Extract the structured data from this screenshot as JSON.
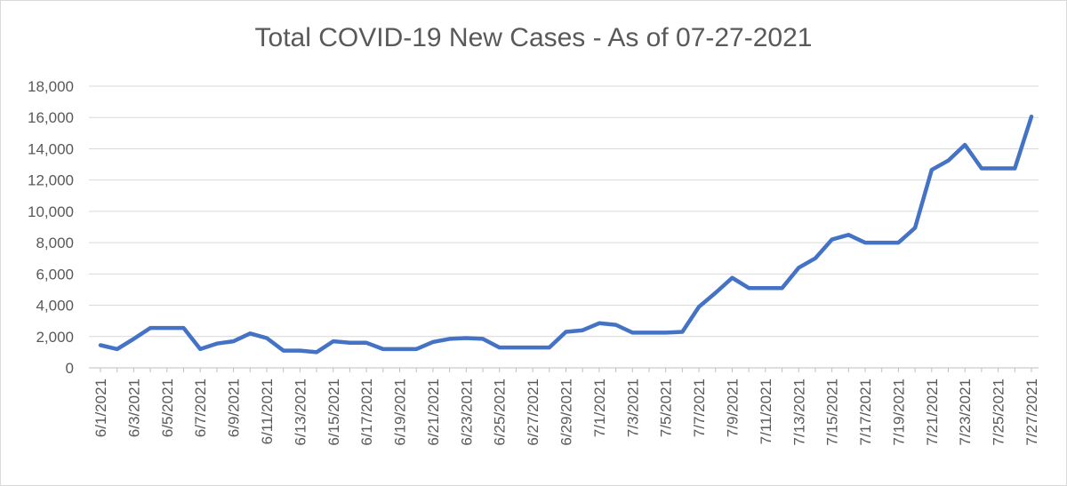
{
  "chart_data": {
    "type": "line",
    "title": "Total COVID-19 New Cases - As of 07-27-2021",
    "xlabel": "",
    "ylabel": "",
    "ylim": [
      0,
      18000
    ],
    "y_ticks": [
      "0",
      "2,000",
      "4,000",
      "6,000",
      "8,000",
      "10,000",
      "12,000",
      "14,000",
      "16,000",
      "18,000"
    ],
    "y_tick_values": [
      0,
      2000,
      4000,
      6000,
      8000,
      10000,
      12000,
      14000,
      16000,
      18000
    ],
    "grid": true,
    "line_color": "#4472c4",
    "x_tick_labels": [
      "6/1/2021",
      "6/3/2021",
      "6/5/2021",
      "6/7/2021",
      "6/9/2021",
      "6/11/2021",
      "6/13/2021",
      "6/15/2021",
      "6/17/2021",
      "6/19/2021",
      "6/21/2021",
      "6/23/2021",
      "6/25/2021",
      "6/27/2021",
      "6/29/2021",
      "7/1/2021",
      "7/3/2021",
      "7/5/2021",
      "7/7/2021",
      "7/9/2021",
      "7/11/2021",
      "7/13/2021",
      "7/15/2021",
      "7/17/2021",
      "7/19/2021",
      "7/21/2021",
      "7/23/2021",
      "7/25/2021",
      "7/27/2021"
    ],
    "x": [
      "6/1/2021",
      "6/2/2021",
      "6/3/2021",
      "6/4/2021",
      "6/5/2021",
      "6/6/2021",
      "6/7/2021",
      "6/8/2021",
      "6/9/2021",
      "6/10/2021",
      "6/11/2021",
      "6/12/2021",
      "6/13/2021",
      "6/14/2021",
      "6/15/2021",
      "6/16/2021",
      "6/17/2021",
      "6/18/2021",
      "6/19/2021",
      "6/20/2021",
      "6/21/2021",
      "6/22/2021",
      "6/23/2021",
      "6/24/2021",
      "6/25/2021",
      "6/26/2021",
      "6/27/2021",
      "6/28/2021",
      "6/29/2021",
      "6/30/2021",
      "7/1/2021",
      "7/2/2021",
      "7/3/2021",
      "7/4/2021",
      "7/5/2021",
      "7/6/2021",
      "7/7/2021",
      "7/8/2021",
      "7/9/2021",
      "7/10/2021",
      "7/11/2021",
      "7/12/2021",
      "7/13/2021",
      "7/14/2021",
      "7/15/2021",
      "7/16/2021",
      "7/17/2021",
      "7/18/2021",
      "7/19/2021",
      "7/20/2021",
      "7/21/2021",
      "7/22/2021",
      "7/23/2021",
      "7/24/2021",
      "7/25/2021",
      "7/26/2021",
      "7/27/2021"
    ],
    "values": [
      1450,
      1200,
      1850,
      2550,
      2550,
      2550,
      1200,
      1550,
      1700,
      2200,
      1900,
      1100,
      1100,
      1000,
      1700,
      1600,
      1600,
      1200,
      1200,
      1200,
      1650,
      1850,
      1900,
      1850,
      1300,
      1300,
      1300,
      1300,
      2300,
      2400,
      2850,
      2750,
      2250,
      2250,
      2250,
      2300,
      3900,
      4800,
      5750,
      5100,
      5100,
      5100,
      6400,
      7000,
      8200,
      8500,
      8000,
      8000,
      8000,
      8950,
      12650,
      13250,
      14250,
      12750,
      12750,
      12750,
      16050
    ]
  }
}
